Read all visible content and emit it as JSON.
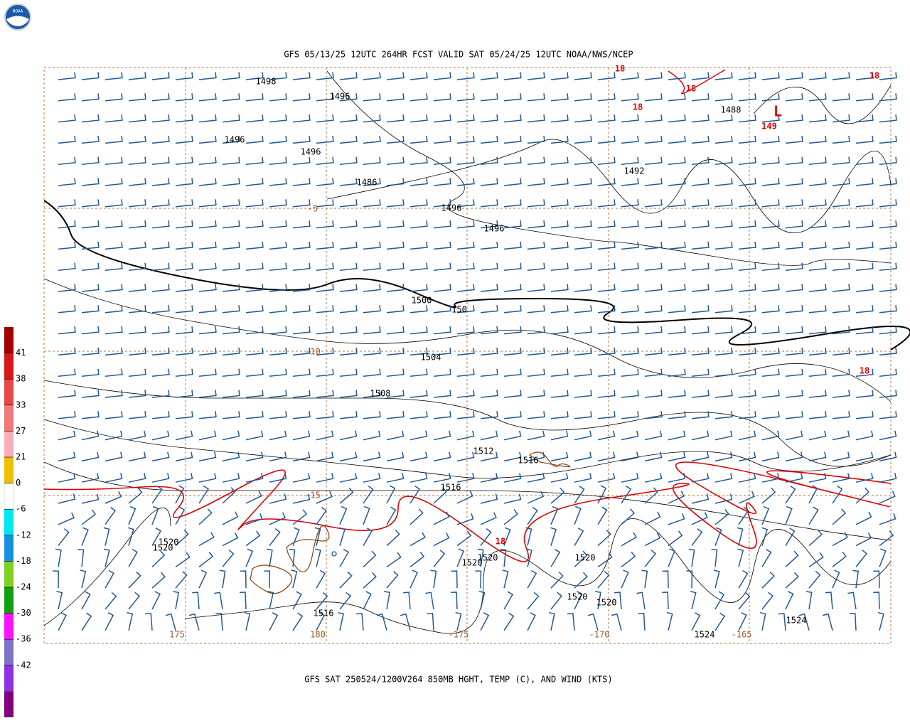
{
  "header": {
    "logo": "NOAA",
    "title": "GFS 05/13/25 12UTC 264HR FCST VALID SAT 05/24/25 12UTC NOAA/NWS/NCEP"
  },
  "footer": {
    "caption": "GFS SAT 250524/1200V264 850MB HGHT, TEMP (C), AND WIND (KTS)"
  },
  "colorbar": {
    "labels": [
      "41",
      "38",
      "33",
      "27",
      "21",
      "0",
      "-6",
      "-12",
      "-18",
      "-24",
      "-30",
      "-36",
      "-42"
    ],
    "colors": [
      "#a00000",
      "#d81818",
      "#e84848",
      "#f07878",
      "#f8b0b8",
      "#f0c000",
      "#ffffff",
      "#00e8f0",
      "#1890e0",
      "#80d020",
      "#10a010",
      "#ff10ff",
      "#8070c8",
      "#9030e0",
      "#800080"
    ]
  },
  "map": {
    "height_labels": [
      "1498",
      "1496",
      "1496",
      "1496",
      "1486",
      "1496",
      "1496",
      "1492",
      "1488",
      "1500",
      "150",
      "1504",
      "1508",
      "1512",
      "1516",
      "1516",
      "1520",
      "1520",
      "1520",
      "1520",
      "1520",
      "1520",
      "1520",
      "1516",
      "1524",
      "1524"
    ],
    "temp_labels": [
      "18",
      "18",
      "18",
      "149",
      "18",
      "18",
      "18"
    ],
    "low_symbol": "L",
    "lat_labels": [
      "-5",
      "-10",
      "-15"
    ],
    "lon_labels": [
      "175",
      "180",
      "-175",
      "-170",
      "-165"
    ]
  }
}
